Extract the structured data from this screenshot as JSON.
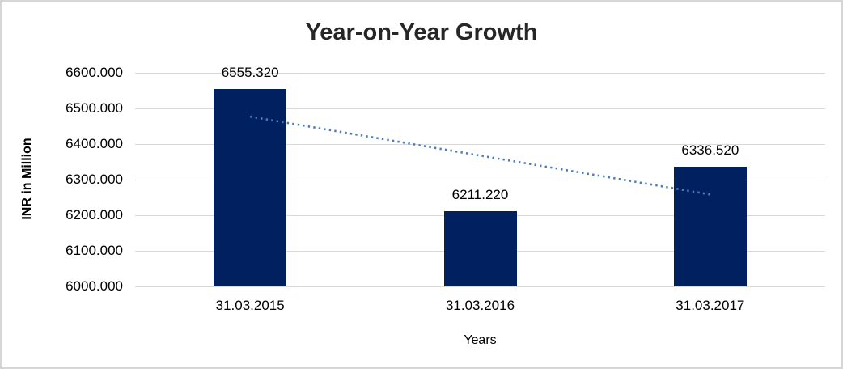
{
  "chart_data": {
    "type": "bar",
    "title": "Year-on-Year Growth",
    "categories": [
      "31.03.2015",
      "31.03.2016",
      "31.03.2017"
    ],
    "values": [
      6555.32,
      6211.22,
      6336.52
    ],
    "value_labels": [
      "6555.320",
      "6211.220",
      "6336.520"
    ],
    "xlabel": "Years",
    "ylabel": "INR in Million",
    "ylim": [
      6000,
      6600
    ],
    "ytick_step": 100,
    "ytick_labels": [
      "6000.000",
      "6100.000",
      "6200.000",
      "6300.000",
      "6400.000",
      "6500.000",
      "6600.000"
    ],
    "grid": "horizontal-only",
    "legend": "none",
    "bar_color": "#002060",
    "gridline_color": "#d9d9d9",
    "title_color": "#262626",
    "trendline": {
      "type": "linear",
      "style": "dotted",
      "color": "#4a7ebb",
      "start_value": 6477.1,
      "end_value": 6258.3
    }
  }
}
